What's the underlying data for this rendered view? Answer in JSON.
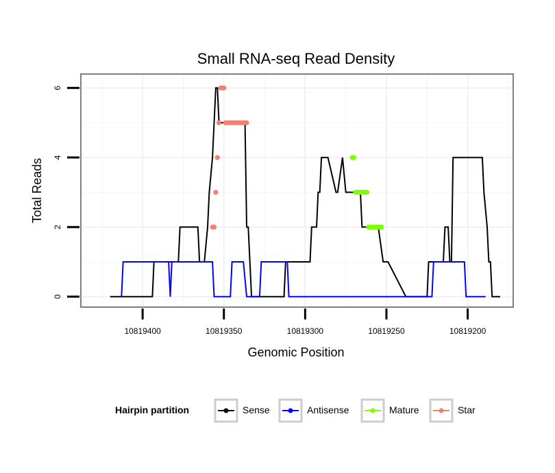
{
  "chart_data": {
    "type": "line",
    "title": "Small RNA-seq Read Density",
    "xlabel": "Genomic Position",
    "ylabel": "Total Reads",
    "x_reversed": true,
    "xlim": [
      10819172,
      10819438
    ],
    "ylim": [
      -0.3,
      6.4
    ],
    "x_ticks": [
      10819400,
      10819350,
      10819300,
      10819250,
      10819200
    ],
    "x_tick_labels": [
      "10819400",
      "10819350",
      "10819300",
      "10819250",
      "10819200"
    ],
    "y_ticks": [
      0,
      2,
      4,
      6
    ],
    "y_tick_labels": [
      "0",
      "2",
      "4",
      "6"
    ],
    "grid": true,
    "legend": {
      "title": "Hairpin partition",
      "position": "bottom",
      "entries": [
        {
          "name": "Sense",
          "color": "#000000"
        },
        {
          "name": "Antisense",
          "color": "#0000ff"
        },
        {
          "name": "Mature",
          "color": "#7fff00"
        },
        {
          "name": "Star",
          "color": "#f08070"
        }
      ]
    },
    "series": [
      {
        "name": "Sense",
        "color": "#000000",
        "style": "line",
        "x": [
          10819420,
          10819394,
          10819393,
          10819378,
          10819377,
          10819366,
          10819365,
          10819362,
          10819360,
          10819359,
          10819357,
          10819356,
          10819355,
          10819354,
          10819353,
          10819352,
          10819350,
          10819349,
          10819348,
          10819347,
          10819337,
          10819336,
          10819335,
          10819334,
          10819333,
          10819331,
          10819330,
          10819313,
          10819312,
          10819297,
          10819296,
          10819293,
          10819292,
          10819291,
          10819290,
          10819289,
          10819287,
          10819286,
          10819281,
          10819280,
          10819277,
          10819275,
          10819266,
          10819265,
          10819263,
          10819261,
          10819256,
          10819255,
          10819252,
          10819250,
          10819249,
          10819238,
          10819237,
          10819225,
          10819224,
          10819218,
          10819217,
          10819215,
          10819214,
          10819212,
          10819211,
          10819210,
          10819209,
          10819191,
          10819190,
          10819188,
          10819187,
          10819186,
          10819185,
          10819180
        ],
        "y": [
          0,
          0,
          1,
          1,
          2,
          2,
          1,
          1,
          2,
          3,
          4,
          5,
          6,
          6,
          5,
          5,
          5,
          5,
          5,
          5,
          5,
          2,
          2,
          1,
          0,
          0,
          0,
          0,
          1,
          1,
          2,
          2,
          3,
          3,
          4,
          4,
          4,
          4,
          3,
          3,
          4,
          3,
          3,
          2,
          2,
          2,
          2,
          2,
          1,
          1,
          1,
          0,
          0,
          0,
          1,
          1,
          1,
          1,
          2,
          2,
          1,
          1,
          4,
          4,
          3,
          2,
          1,
          1,
          0,
          0
        ]
      },
      {
        "name": "Antisense",
        "color": "#0000ff",
        "style": "line",
        "x": [
          10819413,
          10819412,
          10819384,
          10819383,
          10819382,
          10819373,
          10819372,
          10819367,
          10819366,
          10819357,
          10819356,
          10819346,
          10819345,
          10819338,
          10819336,
          10819328,
          10819327,
          10819311,
          10819310,
          10819222,
          10819221,
          10819202,
          10819201,
          10819189
        ],
        "y": [
          0,
          1,
          1,
          0,
          1,
          1,
          1,
          1,
          1,
          1,
          0,
          0,
          1,
          1,
          0,
          0,
          1,
          1,
          0,
          0,
          1,
          1,
          0,
          0
        ]
      },
      {
        "name": "Mature",
        "color": "#7fff00",
        "style": "points",
        "x": [
          10819271,
          10819270,
          10819269,
          10819268,
          10819267,
          10819266,
          10819265,
          10819264,
          10819263,
          10819262,
          10819261,
          10819260,
          10819259,
          10819258,
          10819257,
          10819256,
          10819255,
          10819254,
          10819253
        ],
        "y": [
          4,
          4,
          3,
          3,
          3,
          3,
          3,
          3,
          3,
          3,
          2,
          2,
          2,
          2,
          2,
          2,
          2,
          2,
          2
        ]
      },
      {
        "name": "Star",
        "color": "#f08070",
        "style": "points",
        "x": [
          10819357,
          10819356,
          10819355,
          10819354,
          10819353,
          10819352,
          10819351,
          10819350,
          10819349,
          10819348,
          10819347,
          10819346,
          10819345,
          10819344,
          10819343,
          10819342,
          10819341,
          10819340,
          10819339,
          10819338,
          10819337,
          10819336
        ],
        "y": [
          2,
          2,
          3,
          4,
          5,
          6,
          6,
          6,
          5,
          5,
          5,
          5,
          5,
          5,
          5,
          5,
          5,
          5,
          5,
          5,
          5,
          5
        ]
      }
    ]
  }
}
